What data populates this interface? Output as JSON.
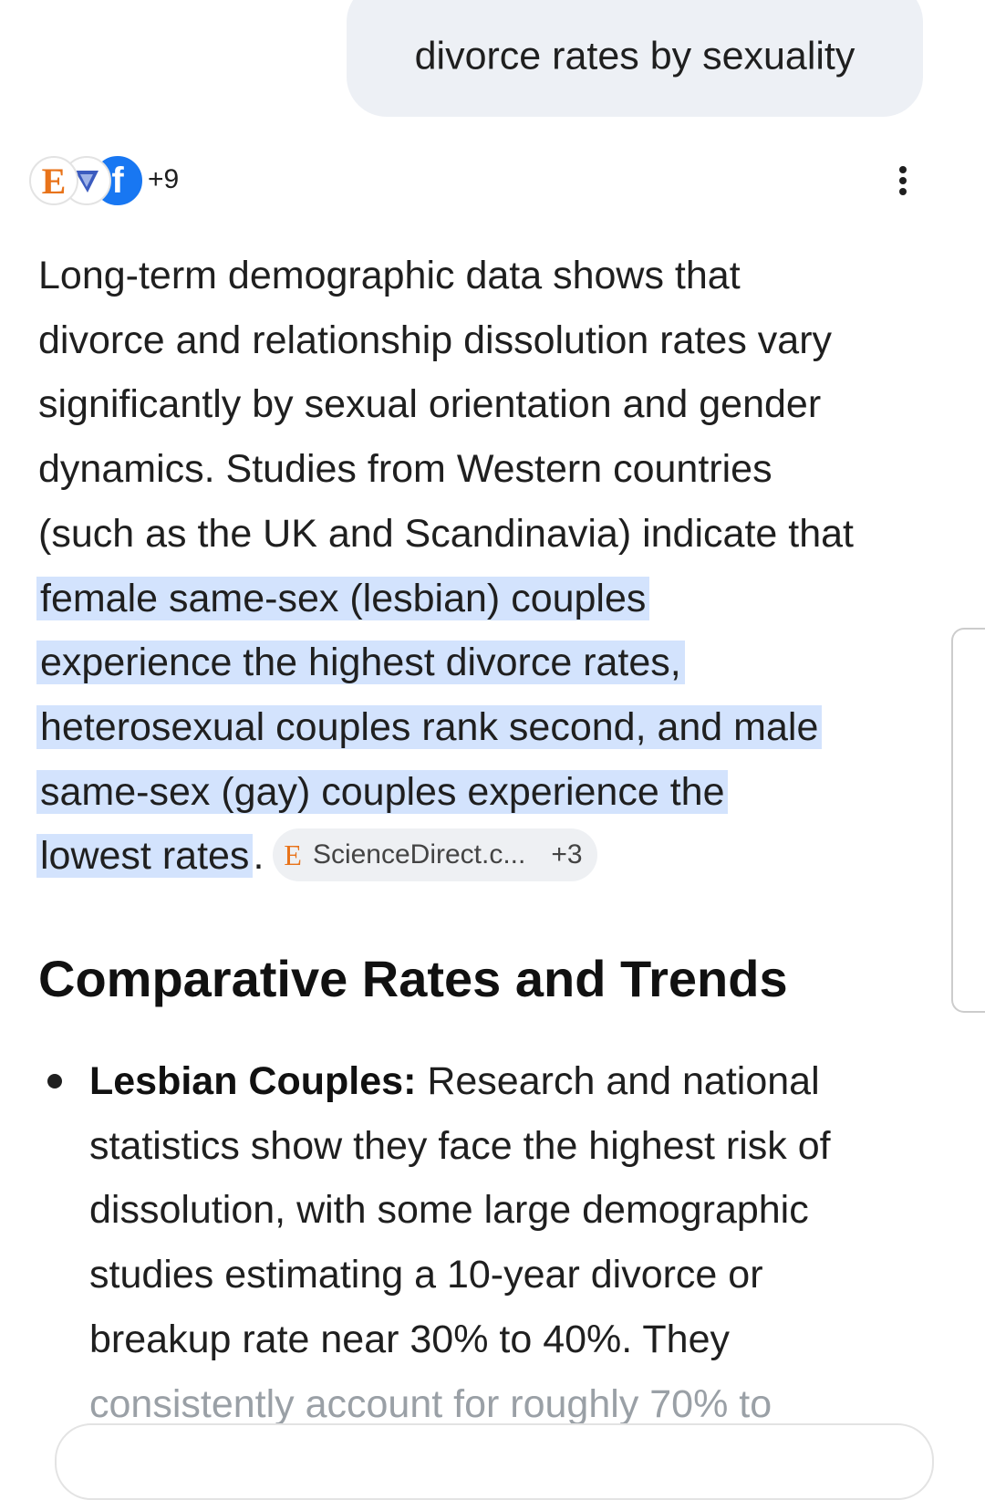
{
  "query": "divorce rates by sexuality",
  "sources": {
    "icons": [
      "E",
      "f"
    ],
    "more": "+9"
  },
  "intro": {
    "lines": [
      "Long-term demographic data shows that",
      "divorce and relationship dissolution rates vary",
      "significantly by sexual orientation and gender",
      "dynamics. Studies from Western countries",
      "(such as the UK and Scandinavia) indicate that"
    ]
  },
  "highlight": {
    "lines": [
      "female same-sex (lesbian) couples",
      "experience the highest divorce rates,",
      "heterosexual couples rank second, and male",
      "same-sex (gay) couples experience the",
      "lowest rates"
    ],
    "end": "."
  },
  "citation": {
    "icon": "E",
    "label": "ScienceDirect.c...",
    "more": "+3"
  },
  "heading": "Comparative Rates and Trends",
  "bullets": [
    {
      "label": "Lesbian Couples:",
      "lines": [
        "Research and national",
        "statistics show they face the highest risk of",
        "dissolution, with some large demographic",
        "studies estimating a 10-year divorce or",
        "breakup rate near 30% to 40%. They",
        "consistently account for roughly 70% to"
      ]
    }
  ]
}
